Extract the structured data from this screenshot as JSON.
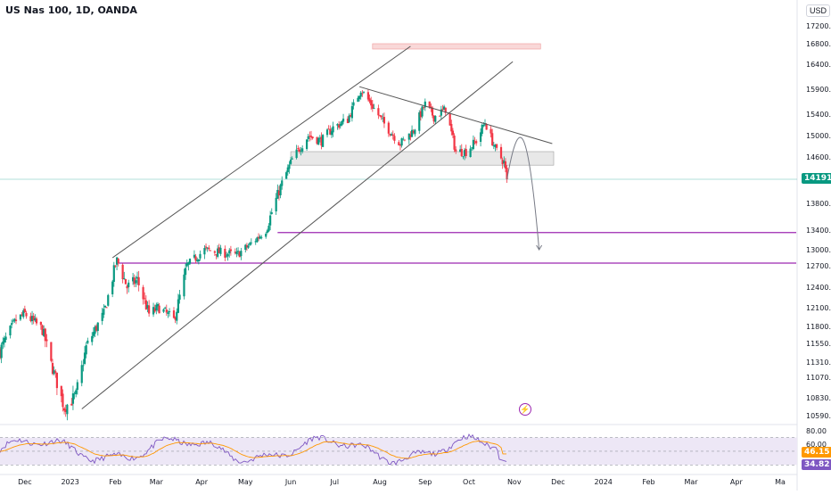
{
  "header": {
    "symbol_title": "US Nas 100, 1D, OANDA",
    "currency": "USD"
  },
  "colors": {
    "up": "#089981",
    "down": "#f23645",
    "channel": "#555555",
    "zone": "#d9d9d9",
    "zone_red": "#f7c8c8",
    "support_line": "#9c27b0",
    "rsi_line": "#7e57c2",
    "rsi_ma": "#ff9800",
    "rsi_band": "#ede7f6",
    "price_tag": "#089981",
    "rsi_tag_ma": "#ff9800",
    "rsi_tag": "#7e57c2"
  },
  "chart_data": [
    {
      "type": "candlestick",
      "title": "US Nas 100, 1D, OANDA",
      "y_axis_unit": "USD",
      "y_ticks": [
        10590.0,
        10830.0,
        11070.0,
        11310.0,
        11550.0,
        11800.0,
        12100.0,
        12400.0,
        12700.0,
        13000.0,
        13400.0,
        13800.0,
        14191.2,
        14600.0,
        15000.0,
        15400.0,
        15900.0,
        16400.0,
        16800.0,
        17200.0
      ],
      "x_ticks": [
        "Dec",
        "2023",
        "Feb",
        "Mar",
        "Apr",
        "May",
        "Jun",
        "Jul",
        "Aug",
        "Sep",
        "Oct",
        "Nov",
        "Dec",
        "2024",
        "Feb",
        "Mar",
        "Apr",
        "Ma"
      ],
      "x_tick_dates": [
        "2022-12-01",
        "2023-01-01",
        "2023-02-01",
        "2023-03-01",
        "2023-04-01",
        "2023-05-01",
        "2023-06-01",
        "2023-07-01",
        "2023-08-01",
        "2023-09-01",
        "2023-10-01",
        "2023-11-01",
        "2023-12-01",
        "2024-01-01",
        "2024-02-01",
        "2024-03-01",
        "2024-04-01",
        "2024-05-01"
      ],
      "x_range": [
        "2022-11-14",
        "2024-05-12"
      ],
      "y_range": [
        10500,
        17400
      ],
      "last_price": 14191.2,
      "close_anchors": [
        [
          "2022-11-14",
          11450
        ],
        [
          "2022-11-25",
          11900
        ],
        [
          "2022-12-01",
          12000
        ],
        [
          "2022-12-13",
          11750
        ],
        [
          "2022-12-20",
          11200
        ],
        [
          "2022-12-28",
          10700
        ],
        [
          "2023-01-05",
          10850
        ],
        [
          "2023-01-12",
          11500
        ],
        [
          "2023-01-24",
          12000
        ],
        [
          "2023-02-02",
          12800
        ],
        [
          "2023-02-09",
          12400
        ],
        [
          "2023-02-16",
          12500
        ],
        [
          "2023-02-24",
          12000
        ],
        [
          "2023-03-03",
          12100
        ],
        [
          "2023-03-13",
          11900
        ],
        [
          "2023-03-22",
          12700
        ],
        [
          "2023-04-03",
          13000
        ],
        [
          "2023-04-14",
          12950
        ],
        [
          "2023-04-25",
          12900
        ],
        [
          "2023-05-04",
          13100
        ],
        [
          "2023-05-15",
          13400
        ],
        [
          "2023-05-24",
          14000
        ],
        [
          "2023-06-02",
          14550
        ],
        [
          "2023-06-13",
          15000
        ],
        [
          "2023-06-22",
          14900
        ],
        [
          "2023-06-30",
          15150
        ],
        [
          "2023-07-10",
          15300
        ],
        [
          "2023-07-19",
          15900
        ],
        [
          "2023-07-26",
          15600
        ],
        [
          "2023-08-03",
          15250
        ],
        [
          "2023-08-15",
          14850
        ],
        [
          "2023-08-24",
          15100
        ],
        [
          "2023-09-01",
          15600
        ],
        [
          "2023-09-07",
          15350
        ],
        [
          "2023-09-15",
          15500
        ],
        [
          "2023-09-22",
          14700
        ],
        [
          "2023-09-29",
          14700
        ],
        [
          "2023-10-06",
          14900
        ],
        [
          "2023-10-12",
          15250
        ],
        [
          "2023-10-19",
          14750
        ],
        [
          "2023-10-25",
          14500
        ],
        [
          "2023-10-27",
          14191.2
        ]
      ],
      "annotations": {
        "channel_upper": [
          [
            "2023-01-30",
            12850
          ],
          [
            "2023-08-22",
            16750
          ]
        ],
        "channel_lower": [
          [
            "2023-01-09",
            10680
          ],
          [
            "2023-10-31",
            16450
          ]
        ],
        "descending_trendline": [
          [
            "2023-07-18",
            15950
          ],
          [
            "2023-11-27",
            14850
          ]
        ],
        "resistance_zone": {
          "from": "2023-06-01",
          "to": "2023-11-28",
          "low": 14450,
          "high": 14700
        },
        "target_zone": {
          "from": "2023-07-27",
          "to": "2023-11-19",
          "low": 16700,
          "high": 16800
        },
        "support_line_1": {
          "price": 13350,
          "from": "2023-05-23",
          "to": "2024-05-12"
        },
        "support_line_2": {
          "price": 12750,
          "from": "2023-02-03",
          "to": "2024-05-12"
        },
        "projected_path": [
          [
            "2023-10-27",
            14191.2
          ],
          [
            "2023-11-04",
            14900
          ],
          [
            "2023-11-10",
            14700
          ],
          [
            "2023-11-18",
            13000
          ]
        ]
      }
    },
    {
      "type": "line",
      "title": "RSI",
      "y_ticks": [
        80.0,
        60.0
      ],
      "y_range": [
        20,
        85
      ],
      "overbought": 70,
      "oversold": 30,
      "series": [
        {
          "name": "",
          "values_label": "46.15"
        },
        {
          "name": "",
          "values_label": "34.82"
        }
      ],
      "ma_last": 46.15,
      "rsi_last": 34.82
    }
  ],
  "tags": {
    "price": "14191.2",
    "rsi_ma": "46.15",
    "rsi": "34.82"
  }
}
